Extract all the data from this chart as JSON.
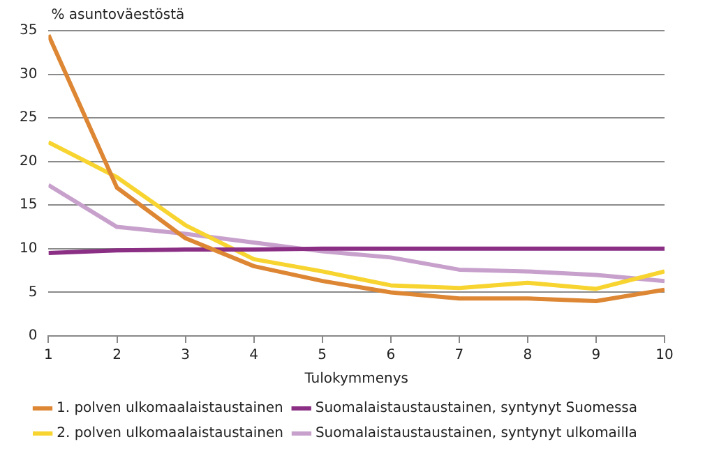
{
  "chart_data": {
    "type": "line",
    "ylabel": "% asuntoväestöstä",
    "xlabel": "Tulokymmenys",
    "x": [
      1,
      2,
      3,
      4,
      5,
      6,
      7,
      8,
      9,
      10
    ],
    "xlim": [
      1,
      10
    ],
    "xticks": [
      1,
      2,
      3,
      4,
      5,
      6,
      7,
      8,
      9,
      10
    ],
    "ylim": [
      0,
      35
    ],
    "yticks": [
      0,
      5,
      10,
      15,
      20,
      25,
      30,
      35
    ],
    "grid": "y",
    "legend": "bottom",
    "marker": "none",
    "line_style": "solid",
    "series": [
      {
        "name": "1. polven ulkomaalaistaustainen",
        "color": "#dd8633",
        "values": [
          34.5,
          17,
          11.2,
          8,
          6.3,
          5,
          4.3,
          4.3,
          4,
          5.3
        ]
      },
      {
        "name": "Suomalaistaustaustainen, syntynyt Suomessa",
        "color": "#8a2f84",
        "values": [
          9.5,
          9.8,
          9.9,
          9.9,
          10,
          10,
          10,
          10,
          10,
          10
        ]
      },
      {
        "name": "2. polven ulkomaalaistaustainen",
        "color": "#f7d42f",
        "values": [
          22.2,
          18.2,
          12.7,
          8.8,
          7.4,
          5.8,
          5.5,
          6.1,
          5.4,
          7.4
        ]
      },
      {
        "name": "Suomalaistaustaustainen, syntynyt ulkomailla",
        "color": "#c7a1cc",
        "values": [
          17.3,
          12.5,
          11.7,
          10.7,
          9.7,
          9,
          7.6,
          7.4,
          7,
          6.3
        ]
      }
    ]
  }
}
